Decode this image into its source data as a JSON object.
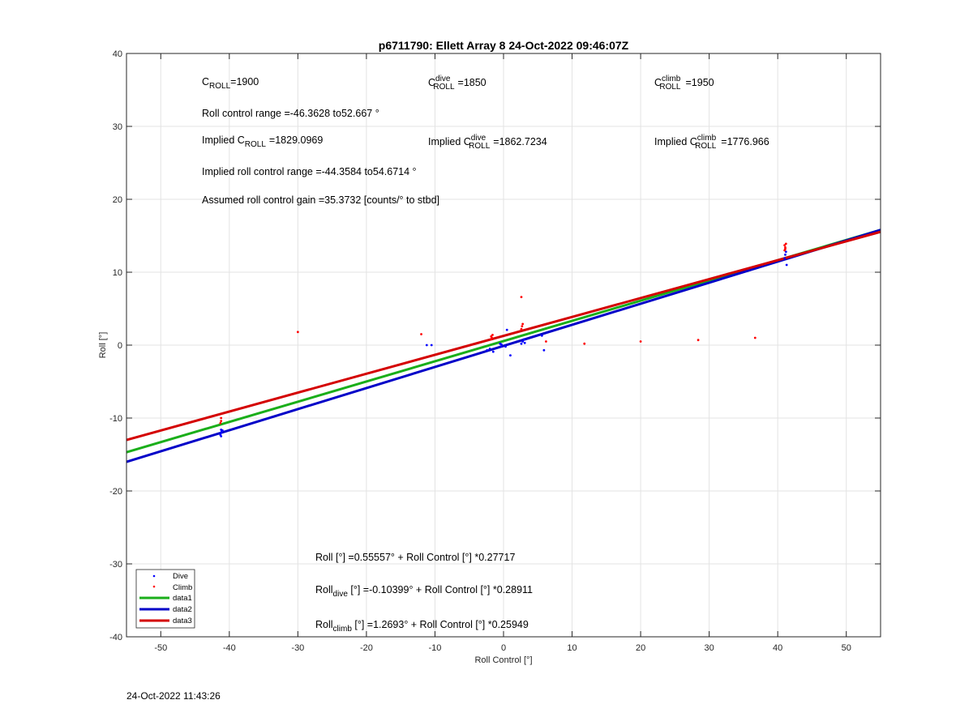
{
  "chart_data": {
    "type": "scatter",
    "title": "p6711790: Ellett Array 8 24-Oct-2022 09:46:07Z",
    "xlabel": "Roll Control [°]",
    "ylabel": "Roll [°]",
    "xlim": [
      -55,
      55
    ],
    "ylim": [
      -40,
      40
    ],
    "xticks": [
      -50,
      -40,
      -30,
      -20,
      -10,
      0,
      10,
      20,
      30,
      40,
      50
    ],
    "yticks": [
      -40,
      -30,
      -20,
      -10,
      0,
      10,
      20,
      30,
      40
    ],
    "grid": true,
    "legend_position": "bottom-left",
    "series": [
      {
        "name": "Dive",
        "kind": "points",
        "color": "#0000ff",
        "points": [
          [
            -41.2,
            -11.6
          ],
          [
            -41.2,
            -12.0
          ],
          [
            -41.3,
            -12.3
          ],
          [
            -41.1,
            -11.8
          ],
          [
            -41.2,
            -12.5
          ],
          [
            -41.0,
            -11.7
          ],
          [
            -11.2,
            0.0
          ],
          [
            -10.5,
            0.0
          ],
          [
            -2.4,
            -0.7
          ],
          [
            -2.0,
            -0.5
          ],
          [
            -1.5,
            -0.9
          ],
          [
            -0.5,
            0.2
          ],
          [
            -0.4,
            -0.2
          ],
          [
            -0.3,
            0.1
          ],
          [
            0.3,
            -0.2
          ],
          [
            0.5,
            2.1
          ],
          [
            1.0,
            -1.4
          ],
          [
            2.6,
            0.2
          ],
          [
            2.8,
            0.5
          ],
          [
            3.0,
            0.8
          ],
          [
            3.1,
            0.3
          ],
          [
            5.6,
            1.3
          ],
          [
            5.9,
            -0.7
          ],
          [
            41.0,
            11.9
          ],
          [
            41.1,
            12.4
          ],
          [
            41.3,
            11.0
          ],
          [
            41.2,
            12.8
          ]
        ]
      },
      {
        "name": "Climb",
        "kind": "points",
        "color": "#ff0000",
        "points": [
          [
            -41.2,
            -10.0
          ],
          [
            -41.2,
            -10.4
          ],
          [
            -41.3,
            -10.7
          ],
          [
            -30.0,
            1.8
          ],
          [
            -12.0,
            1.5
          ],
          [
            -1.8,
            0.8
          ],
          [
            -1.8,
            1.2
          ],
          [
            -1.7,
            1.0
          ],
          [
            -1.6,
            1.4
          ],
          [
            2.6,
            2.2
          ],
          [
            2.7,
            2.6
          ],
          [
            2.8,
            2.9
          ],
          [
            2.6,
            6.6
          ],
          [
            6.2,
            0.5
          ],
          [
            11.8,
            0.2
          ],
          [
            20.0,
            0.5
          ],
          [
            28.4,
            0.7
          ],
          [
            36.7,
            1.0
          ],
          [
            41.0,
            13.0
          ],
          [
            41.1,
            13.4
          ],
          [
            41.0,
            13.7
          ],
          [
            41.2,
            13.9
          ],
          [
            41.1,
            13.2
          ]
        ]
      },
      {
        "name": "data1",
        "kind": "line",
        "color": "#1aae1a",
        "intercept": 0.55557,
        "slope": 0.27717
      },
      {
        "name": "data2",
        "kind": "line",
        "color": "#0000c8",
        "intercept": -0.10399,
        "slope": 0.28911
      },
      {
        "name": "data3",
        "kind": "line",
        "color": "#d40000",
        "intercept": 1.2693,
        "slope": 0.25949
      }
    ],
    "annotations": {
      "c_roll": {
        "base": "C",
        "sub": "ROLL",
        "value": "=1900"
      },
      "c_roll_dive": {
        "base": "C",
        "sup": "dive",
        "sub": "ROLL",
        "value": "=1850"
      },
      "c_roll_climb": {
        "base": "C",
        "sup": "climb",
        "sub": "ROLL",
        "value": "=1950"
      },
      "roll_range": "Roll control range =-46.3628 to52.667 °",
      "implied_c_roll": {
        "prefix": "Implied C",
        "sub": "ROLL",
        "value": "=1829.0969"
      },
      "implied_c_roll_dive": {
        "prefix": "Implied C",
        "sup": "dive",
        "sub": "ROLL",
        "value": "=1862.7234"
      },
      "implied_c_roll_climb": {
        "prefix": "Implied C",
        "sup": "climb",
        "sub": "ROLL",
        "value": "=1776.966"
      },
      "implied_range": "Implied roll control range =-44.3584 to54.6714 °",
      "gain": "Assumed roll control gain =35.3732 [counts/° to stbd]",
      "fit_all": "Roll [°] =0.55557° + Roll Control [°] *0.27717",
      "fit_dive": {
        "base": "Roll",
        "sub": "dive",
        "rest": " [°] =-0.10399° + Roll Control [°] *0.28911"
      },
      "fit_climb": {
        "base": "Roll",
        "sub": "climb",
        "rest": " [°] =1.2693° + Roll Control [°] *0.25949"
      }
    }
  },
  "footer": {
    "timestamp": "24-Oct-2022 11:43:26"
  }
}
